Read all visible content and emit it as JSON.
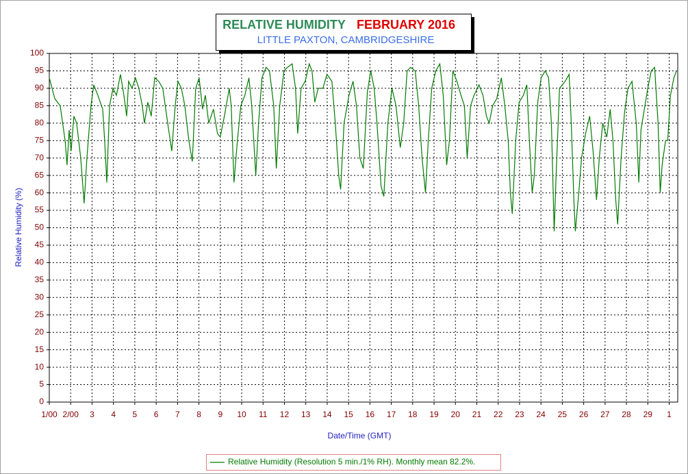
{
  "chart_data": {
    "type": "line",
    "title": [
      "RELATIVE HUMIDITY",
      "FEBRUARY 2016"
    ],
    "subtitle": "LITTLE PAXTON, CAMBRIDGESHIRE",
    "xlabel": "Date/Time (GMT)",
    "ylabel": "Relative Humidity (%)",
    "grid": true,
    "xlim": [
      0,
      29.4
    ],
    "ylim": [
      0,
      100
    ],
    "yticks": [
      0,
      5,
      10,
      15,
      20,
      25,
      30,
      35,
      40,
      45,
      50,
      55,
      60,
      65,
      70,
      75,
      80,
      85,
      90,
      95,
      100
    ],
    "xticks": [
      {
        "value": 0,
        "label": "1/00"
      },
      {
        "value": 1,
        "label": "2/00"
      },
      {
        "value": 2,
        "label": "3"
      },
      {
        "value": 3,
        "label": "4"
      },
      {
        "value": 4,
        "label": "5"
      },
      {
        "value": 5,
        "label": "6"
      },
      {
        "value": 6,
        "label": "7"
      },
      {
        "value": 7,
        "label": "8"
      },
      {
        "value": 8,
        "label": "9"
      },
      {
        "value": 9,
        "label": "10"
      },
      {
        "value": 10,
        "label": "11"
      },
      {
        "value": 11,
        "label": "12"
      },
      {
        "value": 12,
        "label": "13"
      },
      {
        "value": 13,
        "label": "14"
      },
      {
        "value": 14,
        "label": "15"
      },
      {
        "value": 15,
        "label": "16"
      },
      {
        "value": 16,
        "label": "17"
      },
      {
        "value": 17,
        "label": "18"
      },
      {
        "value": 18,
        "label": "19"
      },
      {
        "value": 19,
        "label": "20"
      },
      {
        "value": 20,
        "label": "21"
      },
      {
        "value": 21,
        "label": "22"
      },
      {
        "value": 22,
        "label": "23"
      },
      {
        "value": 23,
        "label": "24"
      },
      {
        "value": 24,
        "label": "25"
      },
      {
        "value": 25,
        "label": "26"
      },
      {
        "value": 26,
        "label": "27"
      },
      {
        "value": 27,
        "label": "28"
      },
      {
        "value": 28,
        "label": "29"
      },
      {
        "value": 29,
        "label": "1"
      }
    ],
    "x": [
      0,
      0.26,
      0.51,
      0.74,
      0.83,
      0.93,
      1.02,
      1.15,
      1.28,
      1.47,
      1.63,
      1.76,
      1.95,
      2.08,
      2.27,
      2.5,
      2.59,
      2.69,
      2.82,
      2.98,
      3.14,
      3.33,
      3.49,
      3.62,
      3.71,
      3.87,
      4.03,
      4.19,
      4.35,
      4.45,
      4.61,
      4.77,
      4.93,
      5.12,
      5.31,
      5.54,
      5.73,
      5.89,
      6.02,
      6.18,
      6.34,
      6.53,
      6.69,
      6.85,
      7.01,
      7.17,
      7.3,
      7.46,
      7.68,
      7.87,
      8,
      8.19,
      8.42,
      8.51,
      8.64,
      8.8,
      8.96,
      9.15,
      9.34,
      9.47,
      9.66,
      9.79,
      9.95,
      10.14,
      10.3,
      10.5,
      10.62,
      10.78,
      10.98,
      11.14,
      11.36,
      11.52,
      11.62,
      11.78,
      11.97,
      12.16,
      12.29,
      12.42,
      12.58,
      12.8,
      12.99,
      13.22,
      13.38,
      13.54,
      13.63,
      13.79,
      14.02,
      14.21,
      14.37,
      14.53,
      14.69,
      14.88,
      15.04,
      15.2,
      15.33,
      15.52,
      15.65,
      15.84,
      16.03,
      16.22,
      16.42,
      16.58,
      16.74,
      16.9,
      17.12,
      17.28,
      17.44,
      17.6,
      17.73,
      17.89,
      18.08,
      18.27,
      18.43,
      18.59,
      18.72,
      18.88,
      19.07,
      19.26,
      19.42,
      19.55,
      19.71,
      19.87,
      20.1,
      20.29,
      20.45,
      20.58,
      20.74,
      20.93,
      21.15,
      21.31,
      21.47,
      21.57,
      21.66,
      21.82,
      21.98,
      22.18,
      22.34,
      22.46,
      22.59,
      22.69,
      22.85,
      23.01,
      23.2,
      23.36,
      23.49,
      23.62,
      23.71,
      23.87,
      24.13,
      24.32,
      24.42,
      24.54,
      24.61,
      24.77,
      24.9,
      25.09,
      25.28,
      25.44,
      25.6,
      25.73,
      25.89,
      26.08,
      26.24,
      26.37,
      26.5,
      26.59,
      26.75,
      26.91,
      27.07,
      27.26,
      27.46,
      27.58,
      27.68,
      27.81,
      28,
      28.16,
      28.32,
      28.48,
      28.58,
      28.67,
      28.83,
      28.93,
      29.06,
      29.22,
      29.34
    ],
    "series": [
      {
        "name": "Relative Humidity (Resolution 5 min./1% RH). Monthly mean 82.2%.",
        "color": "#007a00",
        "values": [
          93,
          87,
          85,
          75,
          68,
          78,
          72,
          82,
          80,
          70,
          57,
          70,
          85,
          91,
          88,
          84,
          75,
          63,
          85,
          90,
          88,
          94,
          88,
          82,
          92,
          90,
          93,
          90,
          85,
          80,
          86,
          82,
          93,
          92,
          90,
          80,
          72,
          85,
          92,
          90,
          85,
          75,
          69,
          90,
          93,
          84,
          88,
          80,
          84,
          77,
          76,
          82,
          90,
          85,
          63,
          75,
          85,
          88,
          93,
          85,
          65,
          80,
          93,
          96,
          95,
          85,
          67,
          85,
          95,
          96,
          97,
          90,
          77,
          90,
          92,
          97,
          95,
          86,
          90,
          90,
          94,
          92,
          80,
          65,
          61,
          80,
          88,
          92,
          85,
          70,
          67,
          89,
          95,
          90,
          80,
          62,
          59,
          80,
          90,
          85,
          73,
          80,
          95,
          96,
          95,
          85,
          70,
          60,
          75,
          90,
          95,
          97,
          88,
          68,
          75,
          95,
          92,
          88,
          85,
          70,
          85,
          88,
          91,
          88,
          82,
          80,
          85,
          87,
          93,
          85,
          75,
          60,
          54,
          75,
          86,
          88,
          91,
          75,
          60,
          65,
          86,
          93,
          95,
          93,
          80,
          49,
          65,
          90,
          92,
          94,
          80,
          58,
          49,
          60,
          70,
          77,
          82,
          72,
          58,
          70,
          80,
          76,
          84,
          75,
          58,
          51,
          70,
          83,
          90,
          92,
          80,
          63,
          78,
          83,
          90,
          95,
          96,
          80,
          60,
          68,
          75,
          75,
          88,
          93,
          95
        ]
      }
    ]
  }
}
